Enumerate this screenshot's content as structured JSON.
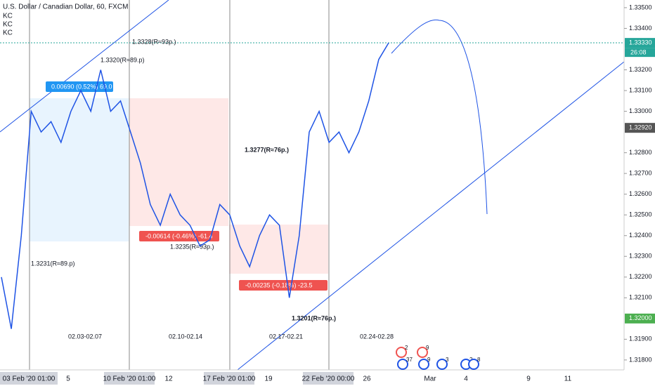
{
  "header": {
    "title": "U.S. Dollar / Canadian Dollar, 60, FXCM",
    "indicators": [
      "KC",
      "KC",
      "KC"
    ]
  },
  "chart_data": {
    "type": "line",
    "color": "#1e53e5",
    "values": [
      1.322,
      1.3195,
      1.324,
      1.33,
      1.329,
      1.3295,
      1.3285,
      1.33,
      1.331,
      1.33,
      1.332,
      1.33,
      1.3305,
      1.329,
      1.3275,
      1.3255,
      1.3245,
      1.326,
      1.325,
      1.3245,
      1.3235,
      1.3238,
      1.3255,
      1.325,
      1.3235,
      1.3225,
      1.324,
      1.325,
      1.3245,
      1.321,
      1.324,
      1.329,
      1.33,
      1.3285,
      1.329,
      1.328,
      1.329,
      1.3305,
      1.3325,
      1.3333
    ],
    "ylim": [
      1.31759,
      1.33537
    ],
    "yticks": [
      {
        "value": 1.335,
        "label": "1.33500"
      },
      {
        "value": 1.334,
        "label": "1.33400"
      },
      {
        "value": 1.332,
        "label": "1.33200"
      },
      {
        "value": 1.331,
        "label": "1.33100"
      },
      {
        "value": 1.33,
        "label": "1.33000"
      },
      {
        "value": 1.328,
        "label": "1.32800"
      },
      {
        "value": 1.327,
        "label": "1.32700"
      },
      {
        "value": 1.326,
        "label": "1.32600"
      },
      {
        "value": 1.325,
        "label": "1.32500"
      },
      {
        "value": 1.324,
        "label": "1.32400"
      },
      {
        "value": 1.323,
        "label": "1.32300"
      },
      {
        "value": 1.322,
        "label": "1.32200"
      },
      {
        "value": 1.321,
        "label": "1.32100"
      },
      {
        "value": 1.319,
        "label": "1.31900"
      },
      {
        "value": 1.318,
        "label": "1.31800"
      }
    ],
    "price_badges": [
      {
        "value": 1.3333,
        "label": "1.33330",
        "timer": "26:08",
        "color": "#26a69a"
      },
      {
        "value": 1.3292,
        "label": "1.32920",
        "color": "#555555"
      },
      {
        "value": 1.32,
        "label": "1.32000",
        "color": "#4caf50"
      }
    ],
    "time_axis_labels": [
      "03 Feb '20  01:00",
      "5",
      "10 Feb '20  01:00",
      "12",
      "17 Feb '20  01:00",
      "19",
      "22 Feb '20  00:00",
      "26",
      "Mar",
      "4",
      "9",
      "11"
    ]
  },
  "annotations": {
    "high_1": "1.3328(R≈93p.)",
    "high_2": "1.3320(R≈89.p)",
    "measure_1": "0.00690 (0.52%) 69.0",
    "high_3": "1.3277(R≈76p.)",
    "measure_2": "-0.00614 (-0.46%) -61.4",
    "low_1": "1.3235(R≈93p.)",
    "low_2": "1.3231(R≈89.p)",
    "measure_3": "-0.00235 (-0.18%) -23.5",
    "low_3": "1.3201(R≈76p.)",
    "week_1": "02.03-02.07",
    "week_2": "02.10-02.14",
    "week_3": "02.17-02.21",
    "week_4": "02.24-02.28"
  },
  "events": [
    "2",
    "37",
    "9",
    "9",
    "3",
    "2",
    "8"
  ]
}
